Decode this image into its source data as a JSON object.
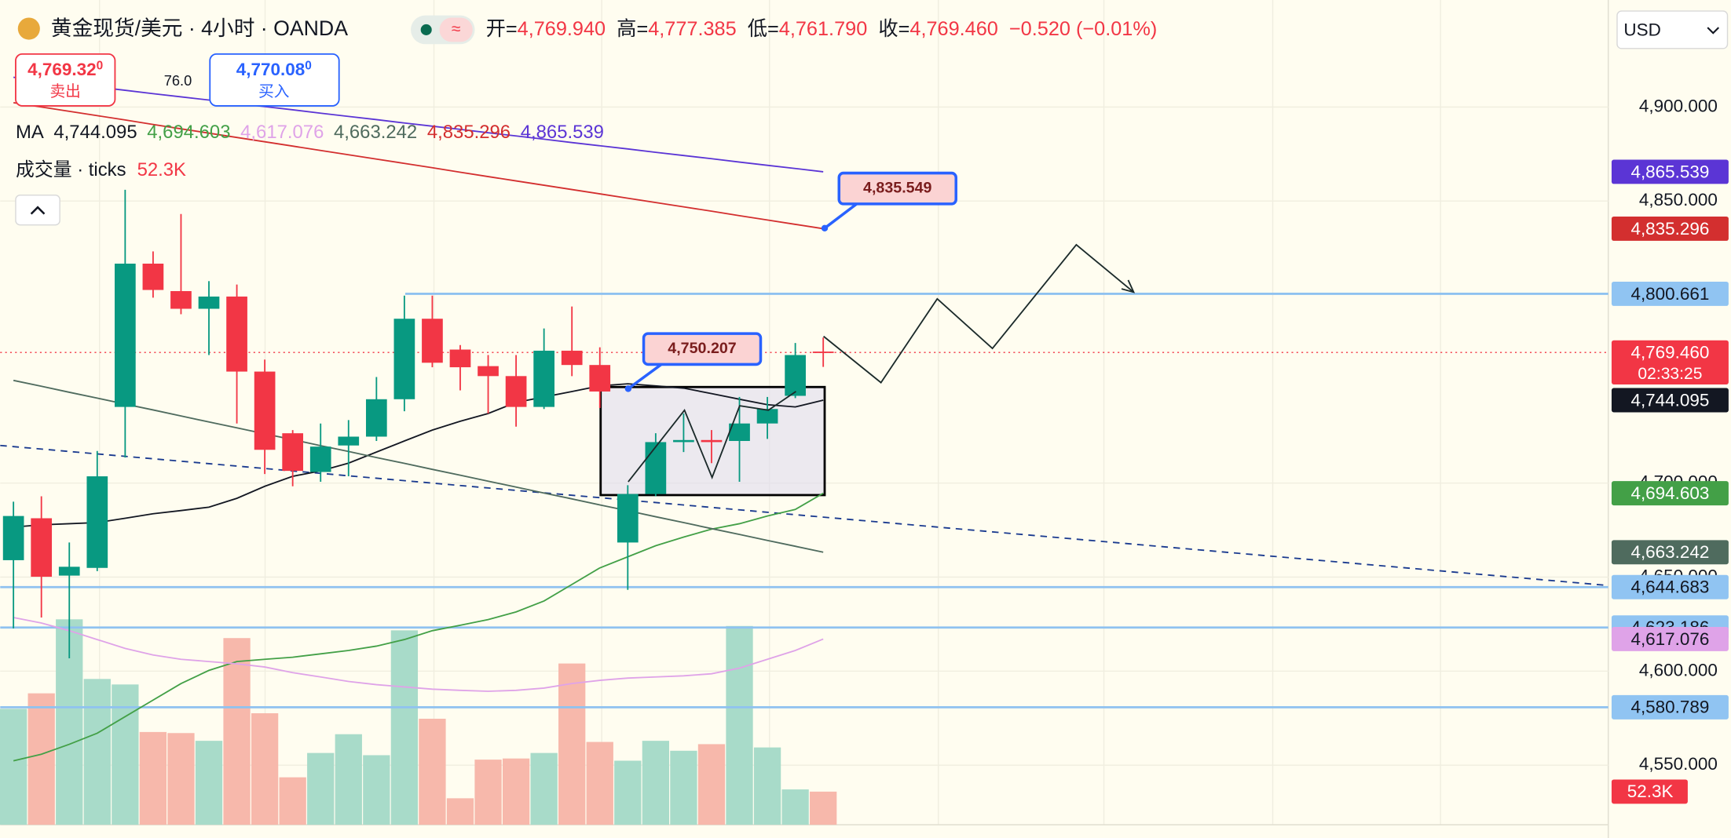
{
  "header": {
    "title": "黄金现货/美元 · 4小时 · OANDA",
    "ohlc": [
      {
        "label": "开=",
        "value": "4,769.940"
      },
      {
        "label": "高=",
        "value": "4,777.385"
      },
      {
        "label": "低=",
        "value": "4,761.790"
      },
      {
        "label": "收=",
        "value": "4,769.460"
      }
    ],
    "change": "−0.520 (−0.01%)"
  },
  "trade": {
    "sell_price": "4,769.32",
    "sell_sup": "0",
    "sell_label": "卖出",
    "spread": "76.0",
    "buy_price": "4,770.08",
    "buy_sup": "0",
    "buy_label": "买入"
  },
  "currency": "USD",
  "chart_data": {
    "type": "candlestick",
    "up_color": "#089981",
    "down_color": "#f23645",
    "ylim": [
      4518.3,
      4956.9
    ],
    "yticks": [
      {
        "value": 4550,
        "label": "4,550.000"
      },
      {
        "value": 4600,
        "label": "4,600.000"
      },
      {
        "value": 4650,
        "label": "4,650.000"
      },
      {
        "value": 4700,
        "label": "4,700.000"
      },
      {
        "value": 4850,
        "label": "4,850.000"
      },
      {
        "value": 4900,
        "label": "4,900.000"
      }
    ],
    "grid": true,
    "candles": [
      {
        "open": 4659.0,
        "high": 4690.1,
        "low": 4622.7,
        "close": 4682.5
      },
      {
        "open": 4681.3,
        "high": 4693.0,
        "low": 4628.5,
        "close": 4650.2
      },
      {
        "open": 4650.8,
        "high": 4668.4,
        "low": 4606.8,
        "close": 4655.5
      },
      {
        "open": 4654.9,
        "high": 4717.1,
        "low": 4653.2,
        "close": 4703.6
      },
      {
        "open": 4740.5,
        "high": 4856.0,
        "low": 4713.6,
        "close": 4816.7
      },
      {
        "open": 4816.7,
        "high": 4823.2,
        "low": 4798.6,
        "close": 4802.7
      },
      {
        "open": 4802.1,
        "high": 4843.1,
        "low": 4789.8,
        "close": 4792.7
      },
      {
        "open": 4792.7,
        "high": 4807.4,
        "low": 4768.1,
        "close": 4799.2
      },
      {
        "open": 4799.2,
        "high": 4805.6,
        "low": 4731.7,
        "close": 4759.3
      },
      {
        "open": 4759.3,
        "high": 4765.7,
        "low": 4704.8,
        "close": 4717.7
      },
      {
        "open": 4726.5,
        "high": 4728.2,
        "low": 4698.3,
        "close": 4706.5
      },
      {
        "open": 4705.9,
        "high": 4731.7,
        "low": 4700.7,
        "close": 4719.4
      },
      {
        "open": 4720.0,
        "high": 4733.5,
        "low": 4703.6,
        "close": 4724.7
      },
      {
        "open": 4724.7,
        "high": 4756.4,
        "low": 4722.4,
        "close": 4744.6
      },
      {
        "open": 4744.6,
        "high": 4799.7,
        "low": 4738.2,
        "close": 4787.4
      },
      {
        "open": 4787.4,
        "high": 4799.7,
        "low": 4761.6,
        "close": 4764.0
      },
      {
        "open": 4771.0,
        "high": 4773.4,
        "low": 4749.3,
        "close": 4761.6
      },
      {
        "open": 4762.2,
        "high": 4768.1,
        "low": 4737.0,
        "close": 4756.9
      },
      {
        "open": 4756.9,
        "high": 4768.1,
        "low": 4730.0,
        "close": 4740.5
      },
      {
        "open": 4740.5,
        "high": 4782.2,
        "low": 4739.4,
        "close": 4770.4
      },
      {
        "open": 4770.4,
        "high": 4793.9,
        "low": 4756.9,
        "close": 4762.8
      },
      {
        "open": 4762.8,
        "high": 4772.2,
        "low": 4739.9,
        "close": 4748.7
      },
      {
        "open": 4668.4,
        "high": 4698.9,
        "low": 4643.2,
        "close": 4694.2
      },
      {
        "open": 4694.2,
        "high": 4726.5,
        "low": 4693.0,
        "close": 4721.8
      },
      {
        "open": 4721.8,
        "high": 4737.0,
        "low": 4716.5,
        "close": 4722.9
      },
      {
        "open": 4722.9,
        "high": 4728.2,
        "low": 4710.6,
        "close": 4721.8
      },
      {
        "open": 4722.4,
        "high": 4745.8,
        "low": 4700.7,
        "close": 4731.7
      },
      {
        "open": 4731.7,
        "high": 4745.8,
        "low": 4723.5,
        "close": 4739.4
      },
      {
        "open": 4746.4,
        "high": 4774.5,
        "low": 4745.2,
        "close": 4768.1
      },
      {
        "open": 4769.94,
        "high": 4777.385,
        "low": 4761.79,
        "close": 4769.46
      }
    ],
    "volume": {
      "name": "成交量 · ticks",
      "label": "52.3K",
      "ylim": [
        0,
        435000
      ],
      "up_color": "#a8dbc9",
      "down_color": "#f7b8ab",
      "values": [
        183000,
        207400,
        324200,
        230100,
        221400,
        146400,
        144700,
        132500,
        294600,
        176000,
        74900,
        113300,
        142900,
        109800,
        306800,
        167300,
        41800,
        102800,
        104600,
        113300,
        254500,
        130700,
        101100,
        132500,
        116800,
        127200,
        313700,
        122000,
        55800,
        52300
      ]
    },
    "ma": {
      "name": "MA",
      "series": [
        {
          "color": "#131722",
          "label": "4,744.095",
          "values": [
            4676.6,
            4677.8,
            4678.4,
            4679.0,
            4681.3,
            4683.7,
            4685.4,
            4687.2,
            4691.9,
            4698.3,
            4703.6,
            4706.5,
            4710.6,
            4716.5,
            4722.4,
            4728.2,
            4732.9,
            4737.0,
            4742.9,
            4745.8,
            4748.7,
            4751.7,
            4752.8,
            4751.7,
            4750.5,
            4747.6,
            4744.6,
            4741.7,
            4740.5,
            4744.095
          ]
        },
        {
          "color": "#43a047",
          "label": "4,694.603",
          "values": [
            4552.3,
            4555.8,
            4561.1,
            4567.0,
            4575.8,
            4584.6,
            4593.4,
            4600.4,
            4605.1,
            4606.3,
            4607.4,
            4609.2,
            4611.0,
            4613.3,
            4616.8,
            4621.5,
            4624.4,
            4627.4,
            4631.5,
            4637.3,
            4646.1,
            4654.9,
            4660.8,
            4666.7,
            4671.3,
            4675.5,
            4678.4,
            4682.5,
            4686.0,
            4694.603
          ]
        },
        {
          "color": "#dfa3e8",
          "label": "4,617.076",
          "values": [
            4628.5,
            4625.6,
            4621.5,
            4616.8,
            4612.1,
            4608.6,
            4606.3,
            4605.1,
            4603.9,
            4602.2,
            4599.2,
            4596.9,
            4594.5,
            4592.8,
            4591.6,
            4590.4,
            4589.8,
            4589.3,
            4589.8,
            4591.0,
            4593.4,
            4595.1,
            4596.3,
            4596.9,
            4597.5,
            4598.6,
            4601.6,
            4606.3,
            4611.0,
            4617.076
          ]
        },
        {
          "color": "#4f6b5e",
          "label": "4,663.242",
          "values": [
            4754.6,
            4751.5,
            4748.3,
            4745.2,
            4742.0,
            4738.9,
            4735.7,
            4732.5,
            4729.4,
            4726.2,
            4723.1,
            4719.9,
            4716.8,
            4713.6,
            4710.5,
            4707.3,
            4704.2,
            4701.0,
            4697.9,
            4694.7,
            4691.6,
            4688.4,
            4685.3,
            4682.1,
            4679.0,
            4675.8,
            4672.7,
            4669.5,
            4666.4,
            4663.242
          ]
        },
        {
          "color": "#d32f2f",
          "label": "4,835.296",
          "values": [
            4902.3,
            4900.0,
            4897.7,
            4895.4,
            4893.1,
            4890.7,
            4888.4,
            4886.1,
            4883.8,
            4881.5,
            4879.2,
            4876.9,
            4874.6,
            4872.3,
            4870.0,
            4867.7,
            4865.3,
            4863.0,
            4860.7,
            4858.4,
            4856.1,
            4853.8,
            4851.5,
            4849.2,
            4846.9,
            4844.6,
            4842.2,
            4839.9,
            4837.6,
            4835.296
          ]
        },
        {
          "color": "#5b35d5",
          "label": "4,865.539",
          "values": [
            4915.8,
            4914.1,
            4912.3,
            4910.6,
            4908.9,
            4907.1,
            4905.4,
            4903.7,
            4901.9,
            4900.2,
            4898.5,
            4896.7,
            4895.0,
            4893.3,
            4891.5,
            4889.8,
            4888.1,
            4886.3,
            4884.6,
            4882.9,
            4881.1,
            4879.4,
            4877.7,
            4875.9,
            4874.2,
            4872.5,
            4870.7,
            4869.0,
            4867.3,
            4865.539
          ]
        }
      ]
    },
    "levels": [
      {
        "value": 4800.661,
        "label": "4,800.661"
      },
      {
        "value": 4644.683,
        "label": "4,644.683"
      },
      {
        "value": 4623.186,
        "label": "4,623.186"
      },
      {
        "value": 4580.789,
        "label": "4,580.789"
      }
    ],
    "last_price": {
      "value": 4769.46,
      "label": "4,769.460",
      "countdown": "02:33:25"
    },
    "callouts": [
      {
        "value": 4835.549,
        "label": "4,835.549"
      },
      {
        "value": 4750.207,
        "label": "4,750.207"
      }
    ]
  }
}
